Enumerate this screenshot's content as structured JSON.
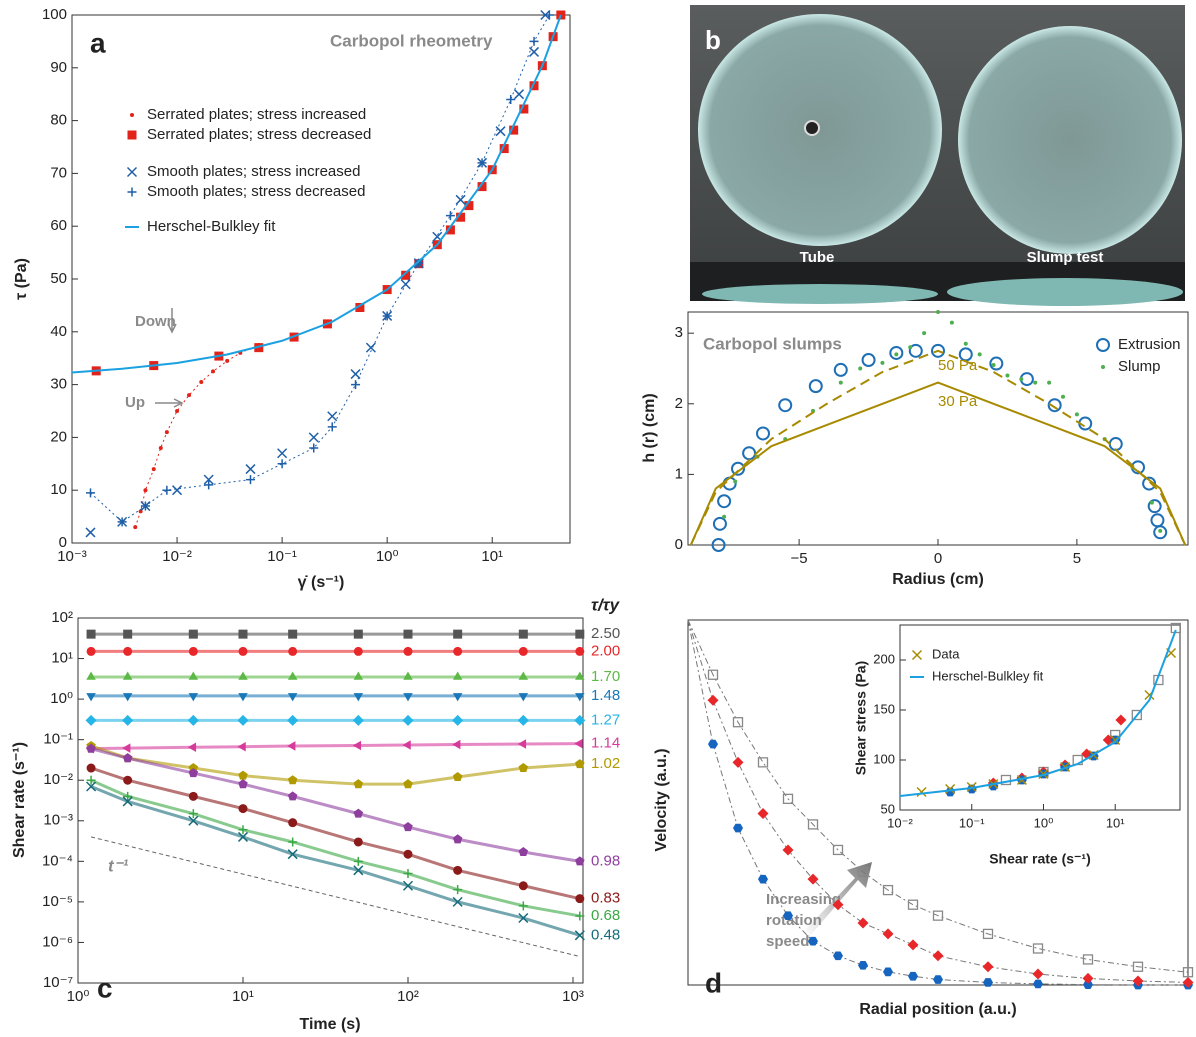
{
  "chart_data": [
    {
      "type": "scatter",
      "panel_label": "a",
      "title": "Carbopol rheometry",
      "xlabel": "γ̇ (s⁻¹)",
      "ylabel": "τ (Pa)",
      "annotations": [
        "Down",
        "Up"
      ],
      "xscale": "log",
      "xlim": [
        0.001,
        55
      ],
      "ylim": [
        0,
        100
      ],
      "xticks": [
        {
          "value": 0.001,
          "label": "10⁻³"
        },
        {
          "value": 0.01,
          "label": "10⁻²"
        },
        {
          "value": 0.1,
          "label": "10⁻¹"
        },
        {
          "value": 1,
          "label": "10⁰"
        },
        {
          "value": 10,
          "label": "10¹"
        }
      ],
      "yticks": [
        0,
        10,
        20,
        30,
        40,
        50,
        60,
        70,
        80,
        90,
        100
      ],
      "series": [
        {
          "name": "Serrated plates; stress increased",
          "color": "#e2231a",
          "marker": "dot",
          "x": [
            0.004,
            0.0045,
            0.005,
            0.006,
            0.007,
            0.008,
            0.01,
            0.013,
            0.017,
            0.022,
            0.03,
            0.04,
            0.06
          ],
          "values": [
            3,
            6,
            10,
            14,
            18,
            21,
            25,
            28,
            30.5,
            32.5,
            34.5,
            36,
            37.5
          ]
        },
        {
          "name": "Serrated plates; stress decreased",
          "color": "#e2231a",
          "marker": "square",
          "x": [
            0.0017,
            0.006,
            0.025,
            0.06,
            0.13,
            0.27,
            0.55,
            1,
            1.5,
            2,
            3,
            4,
            5,
            6,
            8,
            10,
            13,
            16,
            20,
            25,
            30,
            38,
            45
          ],
          "values": [
            32.6,
            33.6,
            35.4,
            37,
            39,
            41.5,
            44.6,
            48,
            50.7,
            52.9,
            56.5,
            59.3,
            61.7,
            63.9,
            67.5,
            70.7,
            74.7,
            78.2,
            82.2,
            86.6,
            90.4,
            95.9,
            100
          ]
        },
        {
          "name": "Smooth plates; stress increased",
          "color": "#1f5fa8",
          "marker": "x",
          "x": [
            0.0015,
            0.003,
            0.005,
            0.01,
            0.02,
            0.05,
            0.1,
            0.2,
            0.3,
            0.5,
            0.7,
            1,
            1.5,
            2,
            3,
            5,
            8,
            12,
            18,
            25,
            32
          ],
          "values": [
            2,
            4,
            7,
            10,
            12,
            14,
            17,
            20,
            24,
            32,
            37,
            43,
            49,
            53,
            58,
            65,
            72,
            78,
            85,
            93,
            100
          ]
        },
        {
          "name": "Smooth plates; stress decreased",
          "color": "#1f5fa8",
          "marker": "plus",
          "x": [
            0.0015,
            0.003,
            0.005,
            0.008,
            0.02,
            0.05,
            0.1,
            0.2,
            0.3,
            0.5,
            1,
            2,
            4,
            8,
            15,
            25,
            35
          ],
          "values": [
            9.5,
            4,
            7,
            10,
            11,
            12,
            15,
            18,
            22,
            30,
            43,
            53,
            62,
            72,
            84,
            95,
            100
          ]
        },
        {
          "name": "Herschel-Bulkley fit",
          "color": "#1ba1e2",
          "marker": "line",
          "x": [
            0.001,
            0.003,
            0.01,
            0.03,
            0.1,
            0.3,
            1,
            3,
            10,
            30,
            45
          ],
          "values": [
            32.3,
            33,
            34.1,
            35.7,
            38.3,
            41.9,
            48,
            56.5,
            70.7,
            90.4,
            100
          ]
        }
      ]
    },
    {
      "type": "scatter",
      "title": "Carbopol slumps",
      "xlabel": "Radius (cm)",
      "ylabel": "h (r) (cm)",
      "xlim": [
        -9,
        9
      ],
      "ylim": [
        0,
        3.3
      ],
      "xticks": [
        {
          "value": -5,
          "label": "−5"
        },
        0,
        5
      ],
      "yticks": [
        0,
        1,
        2,
        3
      ],
      "series": [
        {
          "name": "Extrusion",
          "color": "#1f6fb5",
          "marker": "circle",
          "x": [
            -7.9,
            -7.85,
            -7.7,
            -7.5,
            -7.2,
            -6.8,
            -6.3,
            -5.5,
            -4.4,
            -3.5,
            -2.5,
            -1.5,
            -0.8,
            0,
            1,
            2.1,
            3.2,
            4.2,
            5.3,
            6.4,
            7.2,
            7.6,
            7.8,
            7.9,
            8
          ],
          "values": [
            0,
            0.3,
            0.62,
            0.87,
            1.08,
            1.3,
            1.58,
            1.98,
            2.25,
            2.48,
            2.62,
            2.72,
            2.75,
            2.75,
            2.7,
            2.57,
            2.35,
            1.98,
            1.72,
            1.43,
            1.1,
            0.87,
            0.55,
            0.35,
            0.18
          ]
        },
        {
          "name": "Slump",
          "color": "#4caf50",
          "marker": "dot",
          "x": [
            -7.7,
            -7.3,
            -6.5,
            -5.5,
            -4.5,
            -3.5,
            -2.8,
            -2,
            -1.5,
            -1,
            -0.5,
            0,
            0.5,
            1,
            1.5,
            2,
            2.5,
            3,
            3.5,
            4,
            4.5,
            5,
            6,
            7,
            7.7,
            8
          ],
          "values": [
            0.4,
            0.9,
            1.25,
            1.5,
            1.9,
            2.3,
            2.5,
            2.58,
            2.7,
            2.8,
            3,
            3.3,
            3.15,
            2.85,
            2.7,
            2.55,
            2.4,
            2.35,
            2.3,
            2.3,
            2.1,
            1.85,
            1.5,
            1.1,
            0.6,
            0.2
          ]
        },
        {
          "name": "50 Pa",
          "color": "#a88a00",
          "marker": "dashed",
          "x": [
            -8.9,
            -8,
            -6,
            -4,
            -2,
            0,
            2,
            4,
            6,
            8,
            8.9
          ],
          "values": [
            0,
            0.75,
            1.5,
            2,
            2.45,
            2.75,
            2.45,
            2,
            1.5,
            0.75,
            0
          ]
        },
        {
          "name": "30 Pa",
          "color": "#a88a00",
          "marker": "line",
          "x": [
            -8.9,
            -8,
            -6,
            -4,
            -2,
            0,
            2,
            4,
            6,
            8,
            8.9
          ],
          "values": [
            0,
            0.8,
            1.4,
            1.7,
            2,
            2.3,
            2,
            1.7,
            1.4,
            0.8,
            0
          ]
        }
      ]
    },
    {
      "type": "scatter",
      "panel_label": "c",
      "xlabel": "Time (s)",
      "ylabel": "Shear rate (s⁻¹)",
      "series_header": "τ/τy",
      "xscale": "log",
      "yscale": "log",
      "xlim": [
        1,
        1150
      ],
      "ylim": [
        1e-07,
        100
      ],
      "xticks": [
        {
          "value": 1,
          "label": "10⁰"
        },
        {
          "value": 10,
          "label": "10¹"
        },
        {
          "value": 100,
          "label": "10²"
        },
        {
          "value": 1000,
          "label": "10³"
        }
      ],
      "yticks": [
        {
          "value": 1e-07,
          "label": "10⁻⁷"
        },
        {
          "value": 1e-06,
          "label": "10⁻⁶"
        },
        {
          "value": 1e-05,
          "label": "10⁻⁵"
        },
        {
          "value": 0.0001,
          "label": "10⁻⁴"
        },
        {
          "value": 0.001,
          "label": "10⁻³"
        },
        {
          "value": 0.01,
          "label": "10⁻²"
        },
        {
          "value": 0.1,
          "label": "10⁻¹"
        },
        {
          "value": 1,
          "label": "10⁰"
        },
        {
          "value": 10,
          "label": "10¹"
        },
        {
          "value": 100,
          "label": "10²"
        }
      ],
      "x": [
        1.2,
        2,
        5,
        10,
        20,
        50,
        100,
        200,
        500,
        1100
      ],
      "series": [
        {
          "name": "2.50",
          "color": "#555555",
          "marker": "square",
          "values": [
            40,
            40,
            40,
            40,
            40,
            40,
            40,
            40,
            40,
            40
          ]
        },
        {
          "name": "2.00",
          "color": "#e8272a",
          "marker": "circle-f",
          "values": [
            15,
            15,
            15,
            15,
            15,
            15,
            15,
            15,
            15,
            15
          ]
        },
        {
          "name": "1.70",
          "color": "#5cb946",
          "marker": "triangle",
          "values": [
            3.5,
            3.5,
            3.5,
            3.5,
            3.5,
            3.5,
            3.5,
            3.5,
            3.5,
            3.5
          ]
        },
        {
          "name": "1.48",
          "color": "#1a78b8",
          "marker": "tri-down",
          "values": [
            1.2,
            1.2,
            1.2,
            1.2,
            1.2,
            1.2,
            1.2,
            1.2,
            1.2,
            1.2
          ]
        },
        {
          "name": "1.27",
          "color": "#25b5e6",
          "marker": "diamond",
          "values": [
            0.3,
            0.3,
            0.3,
            0.3,
            0.3,
            0.3,
            0.3,
            0.3,
            0.3,
            0.3
          ]
        },
        {
          "name": "1.14",
          "color": "#d63b9c",
          "marker": "tri-left",
          "values": [
            0.06,
            0.062,
            0.065,
            0.067,
            0.07,
            0.072,
            0.074,
            0.076,
            0.078,
            0.08
          ]
        },
        {
          "name": "1.02",
          "color": "#b09a00",
          "marker": "pentagon",
          "values": [
            0.07,
            0.035,
            0.02,
            0.013,
            0.01,
            0.008,
            0.008,
            0.012,
            0.02,
            0.025
          ]
        },
        {
          "name": "0.98",
          "color": "#8e3f9e",
          "marker": "pentagon",
          "values": [
            0.06,
            0.035,
            0.015,
            0.008,
            0.004,
            0.0015,
            0.0007,
            0.00035,
            0.00017,
            0.0001
          ]
        },
        {
          "name": "0.83",
          "color": "#8b1a1a",
          "marker": "circle-f",
          "values": [
            0.02,
            0.01,
            0.004,
            0.002,
            0.0009,
            0.0003,
            0.00015,
            6e-05,
            2.5e-05,
            1.2e-05
          ]
        },
        {
          "name": "0.68",
          "color": "#3aa845",
          "marker": "plus",
          "values": [
            0.01,
            0.004,
            0.0015,
            0.0006,
            0.0003,
            0.0001,
            5e-05,
            2e-05,
            8e-06,
            4.5e-06
          ]
        },
        {
          "name": "0.48",
          "color": "#166a7a",
          "marker": "x",
          "values": [
            0.007,
            0.003,
            0.001,
            0.0004,
            0.00015,
            6e-05,
            2.5e-05,
            1e-05,
            4e-06,
            1.5e-06
          ]
        }
      ],
      "reference": {
        "label": "t⁻¹",
        "x": [
          1.2,
          1100
        ],
        "values": [
          0.0004,
          4.5e-07
        ]
      }
    },
    {
      "type": "scatter",
      "panel_label": "d",
      "xlabel": "Radial position (a.u.)",
      "ylabel": "Velocity (a.u.)",
      "annotations": [
        "Increasing",
        "rotation",
        "speed"
      ],
      "xlim": [
        0,
        1
      ],
      "ylim": [
        0,
        1
      ],
      "x": [
        0.05,
        0.1,
        0.15,
        0.2,
        0.25,
        0.3,
        0.35,
        0.4,
        0.45,
        0.5,
        0.6,
        0.7,
        0.8,
        0.9,
        1
      ],
      "series": [
        {
          "color": "#1565c0",
          "marker": "hexagon",
          "values": [
            0.66,
            0.43,
            0.29,
            0.19,
            0.12,
            0.08,
            0.054,
            0.036,
            0.024,
            0.015,
            0.007,
            0.003,
            0.001,
            0,
            0
          ]
        },
        {
          "color": "#e8272a",
          "marker": "diamond",
          "values": [
            0.78,
            0.61,
            0.47,
            0.37,
            0.29,
            0.22,
            0.17,
            0.14,
            0.11,
            0.08,
            0.05,
            0.03,
            0.018,
            0.011,
            0.007
          ]
        },
        {
          "color": "#888888",
          "marker": "square-o",
          "values": [
            0.85,
            0.72,
            0.61,
            0.51,
            0.44,
            0.37,
            0.31,
            0.26,
            0.22,
            0.19,
            0.14,
            0.1,
            0.07,
            0.05,
            0.035
          ]
        }
      ]
    },
    {
      "type": "scatter",
      "xlabel": "Shear rate (s⁻¹)",
      "ylabel": "Shear stress (Pa)",
      "xscale": "log",
      "xlim": [
        0.01,
        80
      ],
      "ylim": [
        50,
        235
      ],
      "xticks": [
        {
          "value": 0.01,
          "label": "10⁻²"
        },
        {
          "value": 0.1,
          "label": "10⁻¹"
        },
        {
          "value": 1,
          "label": "10⁰"
        },
        {
          "value": 10,
          "label": "10¹"
        }
      ],
      "yticks": [
        50,
        100,
        150,
        200
      ],
      "series": [
        {
          "color": "#888888",
          "marker": "square-o",
          "x": [
            0.3,
            1,
            3,
            10,
            20,
            40,
            70
          ],
          "values": [
            80,
            88,
            100,
            125,
            145,
            180,
            232
          ]
        },
        {
          "color": "#e8272a",
          "marker": "diamond",
          "x": [
            0.2,
            0.5,
            1,
            2,
            4,
            8,
            12
          ],
          "values": [
            77,
            82,
            88,
            95,
            106,
            120,
            140
          ]
        },
        {
          "color": "#1565c0",
          "marker": "hexagon",
          "x": [
            0.05,
            0.1,
            0.2,
            0.5,
            1,
            2,
            5,
            10
          ],
          "values": [
            68,
            71,
            74,
            80,
            86,
            93,
            104,
            120
          ]
        },
        {
          "name": "Data",
          "color": "#a88a00",
          "marker": "x",
          "x": [
            0.02,
            0.05,
            0.1,
            0.2,
            0.5,
            1,
            2,
            5,
            10,
            30,
            60
          ],
          "values": [
            68,
            71,
            73,
            76,
            80,
            86,
            93,
            105,
            120,
            165,
            207
          ]
        },
        {
          "name": "Herschel-Bulkley fit",
          "color": "#1ba1e2",
          "marker": "line",
          "x": [
            0.01,
            0.1,
            1,
            3,
            10,
            30,
            70
          ],
          "values": [
            64,
            72,
            85,
            96,
            118,
            160,
            230
          ]
        }
      ]
    }
  ],
  "photo": {
    "panel_label": "b",
    "captions": [
      "Tube",
      "Slump test"
    ]
  }
}
